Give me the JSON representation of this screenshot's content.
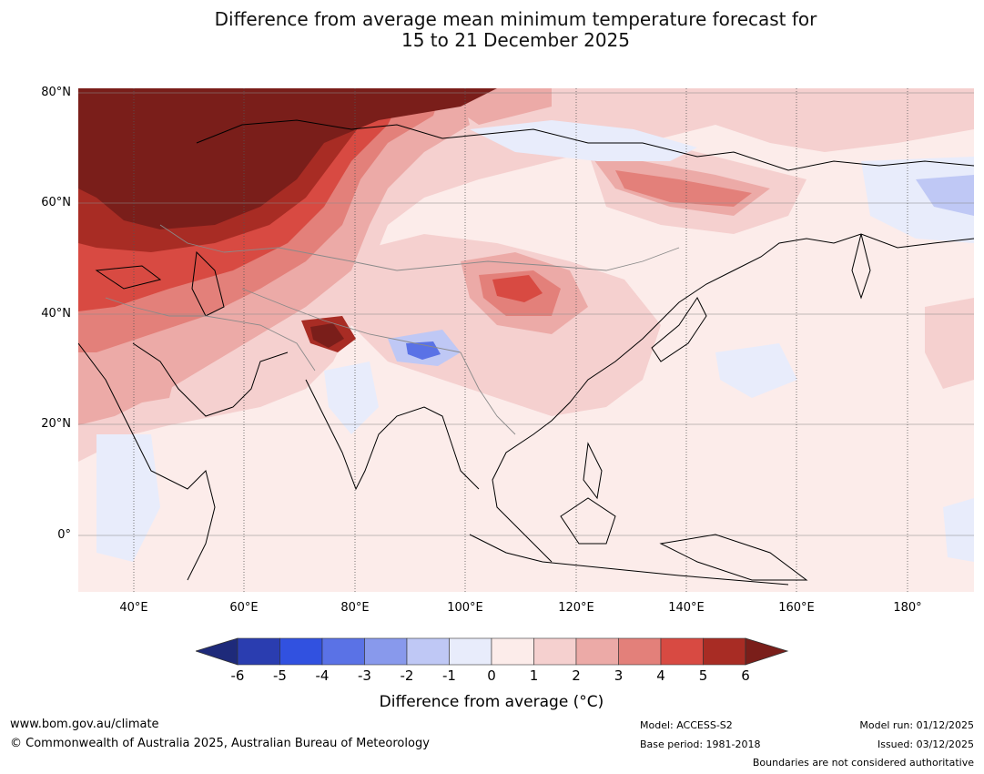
{
  "title": {
    "line1": "Difference from average mean minimum temperature forecast for",
    "line2": "15 to 21 December 2025"
  },
  "map": {
    "lat_labels": [
      "80°N",
      "60°N",
      "40°N",
      "20°N",
      "0°"
    ],
    "lon_labels": [
      "40°E",
      "60°E",
      "80°E",
      "100°E",
      "120°E",
      "140°E",
      "160°E",
      "180°"
    ]
  },
  "legend": {
    "ticks": [
      "-6",
      "-5",
      "-4",
      "-3",
      "-2",
      "-1",
      "0",
      "1",
      "2",
      "3",
      "4",
      "5",
      "6"
    ],
    "colors": [
      "#1e2a7a",
      "#2a3db0",
      "#3151e0",
      "#5a72e6",
      "#8899ec",
      "#bfc8f5",
      "#e8ecfb",
      "#fcecea",
      "#f5d0cf",
      "#ecaaa7",
      "#e3807a",
      "#d84a42",
      "#a82c24",
      "#7a1e1a"
    ],
    "label": "Difference from average (°C)"
  },
  "footer": {
    "website": "www.bom.gov.au/climate",
    "copyright": "© Commonwealth of Australia 2025, Australian Bureau of Meteorology",
    "model": "Model: ACCESS-S2",
    "base_period": "Base period: 1981-2018",
    "model_run": "Model run: 01/12/2025",
    "issued": "Issued: 03/12/2025",
    "disclaimer": "Boundaries are not considered authoritative"
  }
}
